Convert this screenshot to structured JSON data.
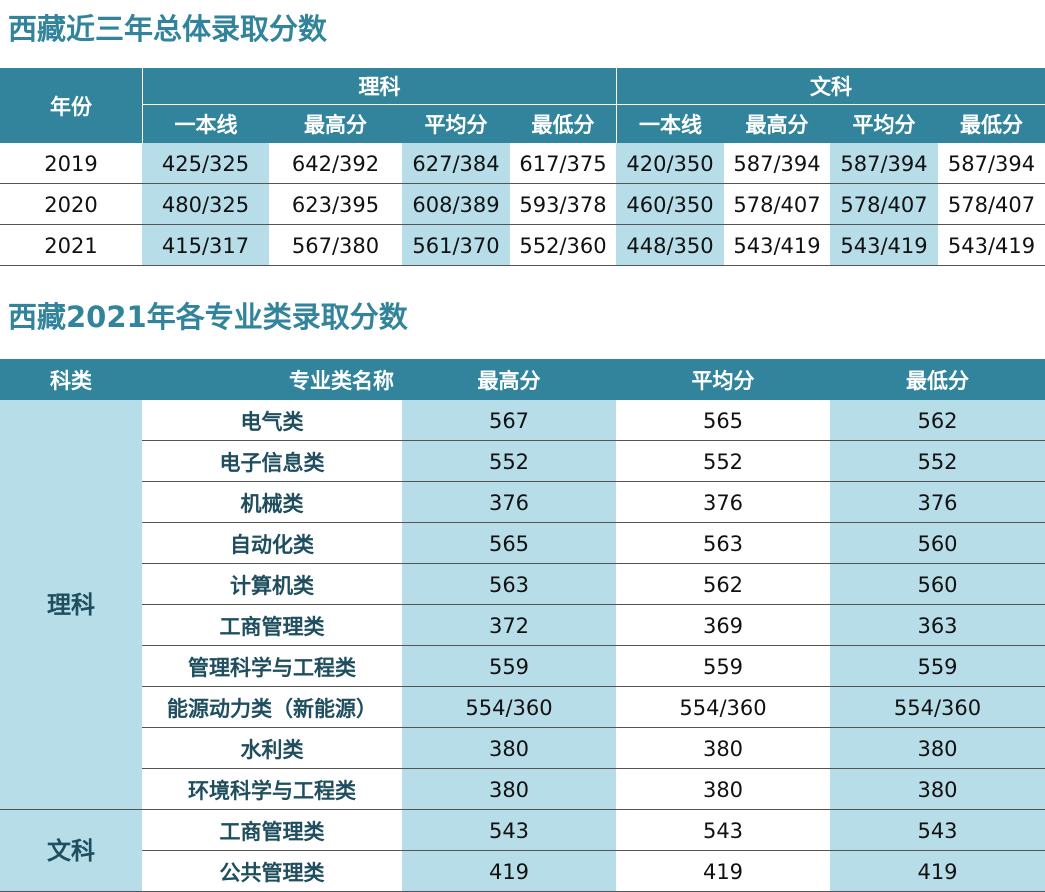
{
  "title1": "西藏近三年总体录取分数",
  "table1": {
    "year_header": "年份",
    "groups": [
      {
        "name": "理科",
        "columns": [
          "一本线",
          "最高分",
          "平均分",
          "最低分"
        ]
      },
      {
        "name": "文科",
        "columns": [
          "一本线",
          "最高分",
          "平均分",
          "最低分"
        ]
      }
    ],
    "rows": [
      [
        "2019",
        "425/325",
        "642/392",
        "627/384",
        "617/375",
        "420/350",
        "587/394",
        "587/394",
        "587/394"
      ],
      [
        "2020",
        "480/325",
        "623/395",
        "608/389",
        "593/378",
        "460/350",
        "578/407",
        "578/407",
        "578/407"
      ],
      [
        "2021",
        "415/317",
        "567/380",
        "561/370",
        "552/360",
        "448/350",
        "543/419",
        "543/419",
        "543/419"
      ]
    ]
  },
  "title2": "西藏2021年各专业类录取分数",
  "table2": {
    "header": [
      "科类",
      "专业类名称",
      "最高分",
      "平均分",
      "最低分"
    ],
    "groups": [
      {
        "category": "理科",
        "rows": [
          {
            "name": "电气类",
            "values": [
              567,
              565,
              562
            ]
          },
          {
            "name": "电子信息类",
            "values": [
              552,
              552,
              552
            ]
          },
          {
            "name": "机械类",
            "values": [
              376,
              376,
              376
            ]
          },
          {
            "name": "自动化类",
            "values": [
              565,
              563,
              560
            ]
          },
          {
            "name": "计算机类",
            "values": [
              563,
              562,
              560
            ]
          },
          {
            "name": "工商管理类",
            "values": [
              372,
              369,
              363
            ]
          },
          {
            "name": "管理科学与工程类",
            "values": [
              559,
              559,
              559
            ]
          },
          {
            "name": "能源动力类（新能源）",
            "values": [
              "554/360",
              "554/360",
              "554/360"
            ]
          },
          {
            "name": "水利类",
            "values": [
              380,
              380,
              380
            ]
          },
          {
            "name": "环境科学与工程类",
            "values": [
              380,
              380,
              380
            ]
          }
        ]
      },
      {
        "category": "文科",
        "rows": [
          {
            "name": "工商管理类",
            "values": [
              543,
              543,
              543
            ]
          },
          {
            "name": "公共管理类",
            "values": [
              419,
              419,
              419
            ]
          }
        ]
      }
    ]
  }
}
